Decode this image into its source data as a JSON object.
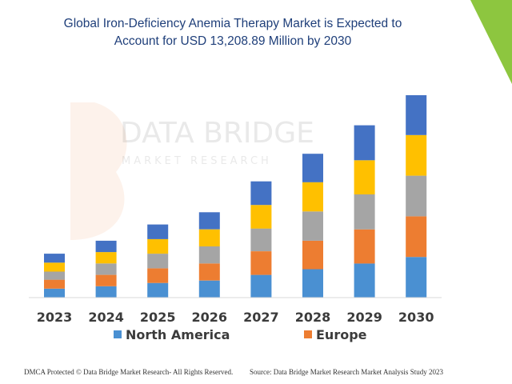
{
  "colors": {
    "north_america": "#4a90d2",
    "europe": "#ed7d31",
    "series3": "#a5a5a5",
    "series4": "#ffc000",
    "series5": "#4472c4",
    "title": "#1f3f7a",
    "corner": "#8dc63f",
    "axis": "#d9d9d9"
  },
  "watermark": {
    "line1": "DATA BRIDGE",
    "line2": "MARKET RESEARCH"
  },
  "footer": {
    "left": "DMCA Protected © Data Bridge Market Research- All Rights Reserved.",
    "right": "Source: Data Bridge Market Research Market Analysis Study 2023"
  },
  "chart_data": {
    "type": "bar",
    "stacked": true,
    "title": "Global Iron-Deficiency Anemia Therapy Market is Expected to Account for USD 13,208.89 Million by 2030",
    "title_lines": [
      "Global Iron-Deficiency Anemia Therapy Market is Expected to",
      "Account for USD 13,208.89 Million by 2030"
    ],
    "categories": [
      "2023",
      "2024",
      "2025",
      "2026",
      "2027",
      "2028",
      "2029",
      "2030"
    ],
    "ylim": [
      0,
      250
    ],
    "series": [
      {
        "name": "North America",
        "color_key": "north_america",
        "legend": true,
        "values": [
          11,
          14,
          18,
          21,
          28,
          35,
          42,
          50
        ]
      },
      {
        "name": "Europe",
        "color_key": "europe",
        "legend": true,
        "values": [
          11,
          14,
          18,
          21,
          29,
          35,
          42,
          50
        ]
      },
      {
        "name": "",
        "color_key": "series3",
        "legend": false,
        "values": [
          10,
          14,
          18,
          21,
          28,
          36,
          43,
          50
        ]
      },
      {
        "name": "",
        "color_key": "series4",
        "legend": false,
        "values": [
          11,
          14,
          18,
          21,
          29,
          36,
          42,
          50
        ]
      },
      {
        "name": "",
        "color_key": "series5",
        "legend": false,
        "values": [
          11,
          14,
          18,
          21,
          29,
          35,
          43,
          49
        ]
      }
    ],
    "xlabel": "",
    "ylabel": "",
    "grid": false,
    "legend_position": "bottom"
  }
}
